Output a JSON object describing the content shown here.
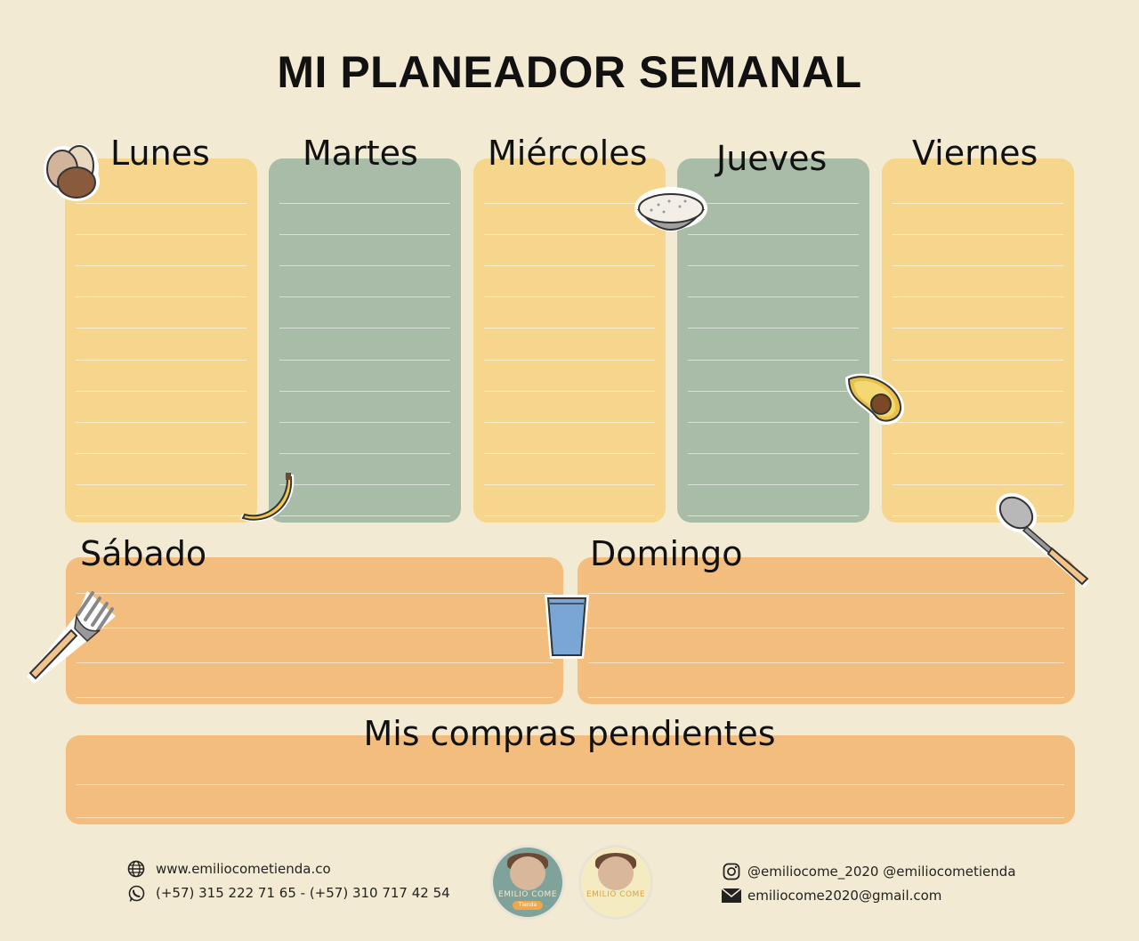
{
  "title": "MI PLANEADOR SEMANAL",
  "days": {
    "monday": "Lunes",
    "tuesday": "Martes",
    "wednesday": "Miércoles",
    "thursday": "Jueves",
    "friday": "Viernes",
    "saturday": "Sábado",
    "sunday": "Domingo"
  },
  "shopping_label": "Mis compras pendientes",
  "footer": {
    "website": "www.emiliocometienda.co",
    "phones": "(+57) 315 222 71 65 - (+57) 310 717 42 54",
    "instagram": "@emiliocome_2020   @emiliocometienda",
    "email": "emiliocome2020@gmail.com",
    "logo1_text": "EMILIO COME",
    "logo1_sub": "Tienda",
    "logo2_text": "EMILIO COME"
  },
  "colors": {
    "background": "#f3ead3",
    "yellow": "#f5d68c",
    "green": "#a8bca7",
    "orange": "#f2bd7d"
  },
  "icons": [
    "eggs-icon",
    "banana-icon",
    "rice-bowl-icon",
    "avocado-icon",
    "spoon-icon",
    "fork-icon",
    "glass-icon",
    "globe-icon",
    "whatsapp-icon",
    "instagram-icon",
    "mail-icon"
  ]
}
